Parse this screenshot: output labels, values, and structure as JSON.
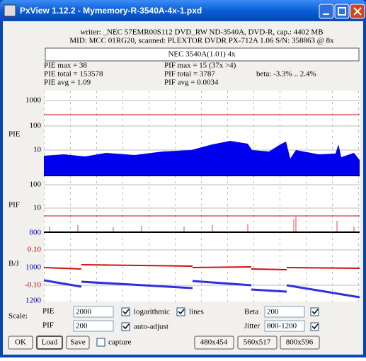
{
  "window": {
    "title": "PxView 1.12.2  -  Mymemory-R-3540A-4x-1.pxd"
  },
  "header": {
    "writer": "writer: _NEC 57EMR00S112 DVD_RW ND-3540A, DVD-R, cap.: 4402 MB",
    "media": "MID: MCC 01RG20, scanned: PLEXTOR DVDR PX-712A 1.06 S/N: 358863 @ 8x",
    "drive": "NEC 3540A(1.01) 4x"
  },
  "stats": {
    "pie_max": "PIE max = 38",
    "pie_total": "PIE total = 153578",
    "pie_avg": "PIE avg = 1.09",
    "pif_max": "PIF max = 15 (37x >4)",
    "pif_total": "PIF total = 3787",
    "pif_avg": "PIF avg = 0.0034",
    "beta": "beta: -3.3% .. 2.4%"
  },
  "charts": {
    "pie": {
      "label": "PIE",
      "ticks": [
        "1000",
        "100",
        "10"
      ]
    },
    "pif": {
      "label": "PIF",
      "ticks": [
        "100",
        "10"
      ]
    },
    "bj": {
      "label": "B/J",
      "beta_ticks": [
        "0.10",
        "-0.10"
      ],
      "jitter_ticks": [
        "800",
        "1000",
        "1200"
      ]
    }
  },
  "controls": {
    "scale": "Scale:",
    "pie_label": "PIE",
    "pie_value": "2000",
    "logarithmic": "logarithmic",
    "lines": "lines",
    "pif_label": "PIF",
    "pif_value": "200",
    "auto_adjust": "auto-adjust",
    "beta_label": "Beta",
    "beta_value": "200",
    "jitter_label": "Jitter",
    "jitter_value": "800-1200",
    "ok": "OK",
    "load": "Load",
    "save": "Save",
    "capture": "capture",
    "size1": "480x454",
    "size2": "560x517",
    "size3": "800x596"
  }
}
